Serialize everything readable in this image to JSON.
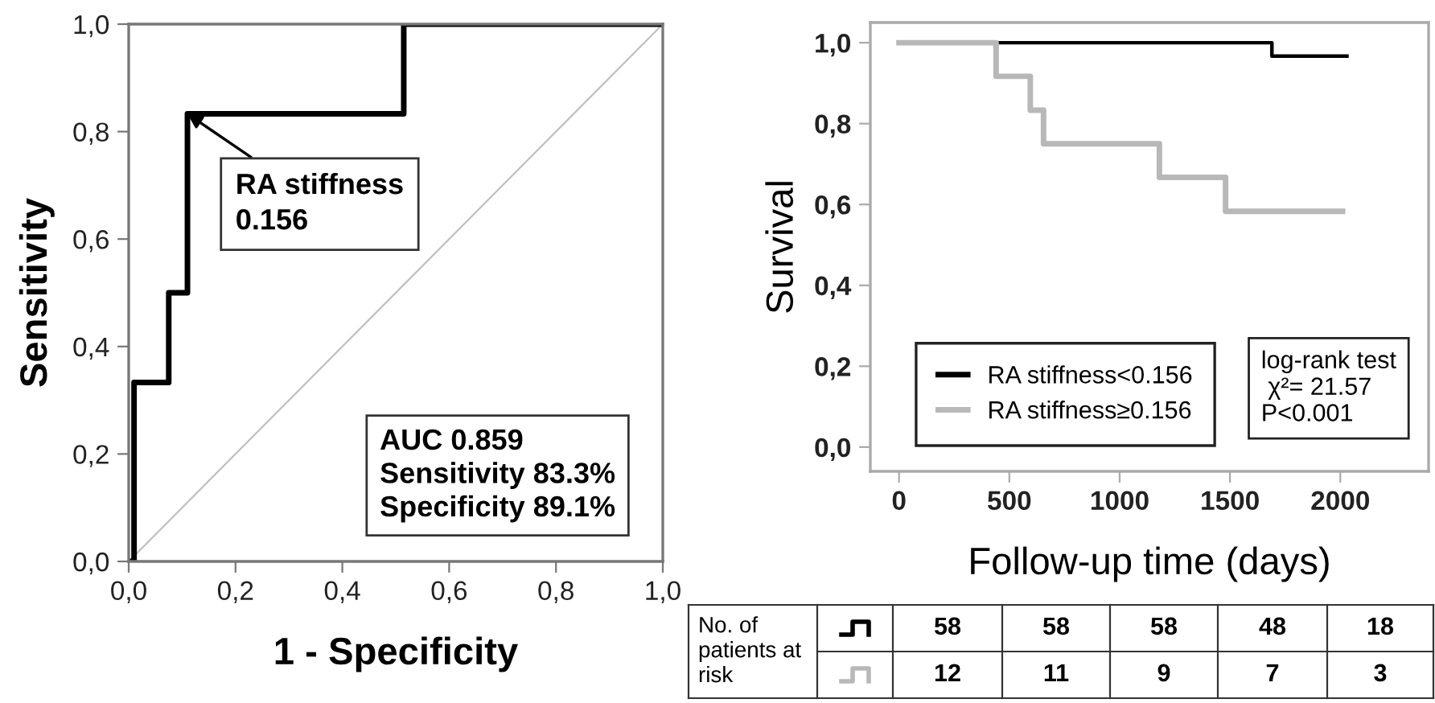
{
  "chart_data": [
    {
      "type": "step",
      "xlabel": "1 - Specificity",
      "ylabel": "Sensitivity",
      "xlim": [
        0,
        1
      ],
      "ylim": [
        0,
        1
      ],
      "xticks": [
        {
          "value": 0,
          "label": "0,0"
        },
        {
          "value": 0.2,
          "label": "0,2"
        },
        {
          "value": 0.4,
          "label": "0,4"
        },
        {
          "value": 0.6,
          "label": "0,6"
        },
        {
          "value": 0.8,
          "label": "0,8"
        },
        {
          "value": 1,
          "label": "1,0"
        }
      ],
      "yticks": [
        {
          "value": 0,
          "label": "0,0"
        },
        {
          "value": 0.2,
          "label": "0,2"
        },
        {
          "value": 0.4,
          "label": "0,4"
        },
        {
          "value": 0.6,
          "label": "0,6"
        },
        {
          "value": 0.8,
          "label": "0,8"
        },
        {
          "value": 1,
          "label": "1,0"
        }
      ],
      "series": [
        {
          "type": "line",
          "color": "#c0c0c0",
          "x": [
            0,
            1
          ],
          "values": [
            0,
            1
          ]
        },
        {
          "type": "step",
          "color": "#000000",
          "x": [
            0,
            0.01,
            0.075,
            0.11,
            0.515,
            1
          ],
          "values": [
            0,
            0.333,
            0.5,
            0.833,
            1.0,
            1.0
          ]
        }
      ],
      "annotations": [
        {
          "text": "RA stiffness\n0.156",
          "x": 0.11,
          "y": 0.833
        },
        "AUC 0.859\nSensitivity 83.3%\nSpecificity 89.1%"
      ]
    },
    {
      "type": "step",
      "xlabel": "Follow-up time (days)",
      "ylabel": "Survival",
      "xlim": [
        -130,
        2400
      ],
      "ylim": [
        -0.06,
        1.05
      ],
      "xticks": [
        0,
        500,
        1000,
        1500,
        2000
      ],
      "yticks": [
        {
          "value": 0,
          "label": "0,0"
        },
        {
          "value": 0.2,
          "label": "0,2"
        },
        {
          "value": 0.4,
          "label": "0,4"
        },
        {
          "value": 0.6,
          "label": "0,6"
        },
        {
          "value": 0.8,
          "label": "0,8"
        },
        {
          "value": 1,
          "label": "1,0"
        }
      ],
      "legend": "bottom left",
      "series": [
        {
          "name": "RA stiffness<0.156",
          "color": "#000000",
          "x": [
            450,
            1690,
            2030
          ],
          "values": [
            1.0,
            0.967,
            0.967
          ]
        },
        {
          "name": "RA stiffness≥0.156",
          "color": "#b8b8b8",
          "x": [
            0,
            440,
            595,
            655,
            1180,
            1480,
            2010
          ],
          "values": [
            1.0,
            0.917,
            0.833,
            0.75,
            0.667,
            0.583,
            0.583
          ]
        }
      ],
      "annotations": [
        "log-rank test\n χ²= 21.57\nP<0.001",
        "No. of\npatients at\nrisk",
        "58",
        "58",
        "58",
        "48",
        "18",
        "12",
        "11",
        "9",
        "7",
        "3"
      ]
    }
  ]
}
